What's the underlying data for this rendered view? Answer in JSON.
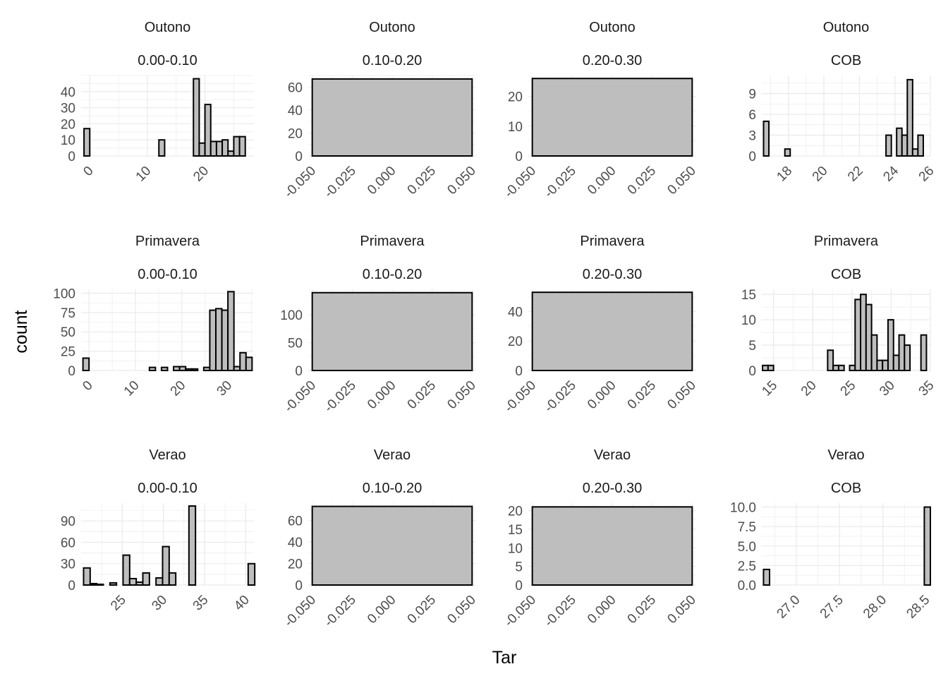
{
  "xlabel": "Tar",
  "ylabel": "count",
  "chart_data": [
    {
      "type": "histogram",
      "season": "Outono",
      "range": "0.00-0.10",
      "xlim": [
        -1.5,
        28.5
      ],
      "ylim": [
        0,
        50
      ],
      "xticks": [
        0,
        10,
        20
      ],
      "yticks": [
        0,
        10,
        20,
        30,
        40
      ],
      "bins": [
        [
          -1,
          0,
          17
        ],
        [
          12,
          13,
          10
        ],
        [
          18,
          19,
          48
        ],
        [
          19,
          20,
          8
        ],
        [
          20,
          21,
          32
        ],
        [
          21,
          22,
          9
        ],
        [
          22,
          23,
          9
        ],
        [
          23,
          24,
          10
        ],
        [
          24,
          25,
          3
        ],
        [
          25,
          26,
          12
        ],
        [
          26,
          27,
          12
        ]
      ]
    },
    {
      "type": "histogram",
      "season": "Outono",
      "range": "0.10-0.20",
      "xlim": [
        -0.0525,
        0.0525
      ],
      "ylim": [
        0,
        70
      ],
      "xticks": [
        -0.05,
        -0.025,
        0,
        0.025,
        0.05
      ],
      "xtick_labels": [
        "-0.050",
        "-0.025",
        "0.000",
        "0.025",
        "0.050"
      ],
      "yticks": [
        0,
        20,
        40,
        60
      ],
      "bins": [
        [
          -0.05,
          0.05,
          67
        ]
      ]
    },
    {
      "type": "histogram",
      "season": "Outono",
      "range": "0.20-0.30",
      "xlim": [
        -0.0525,
        0.0525
      ],
      "ylim": [
        0,
        27
      ],
      "xticks": [
        -0.05,
        -0.025,
        0,
        0.025,
        0.05
      ],
      "xtick_labels": [
        "-0.050",
        "-0.025",
        "0.000",
        "0.025",
        "0.050"
      ],
      "yticks": [
        0,
        10,
        20
      ],
      "bins": [
        [
          -0.05,
          0.05,
          26
        ]
      ]
    },
    {
      "type": "histogram",
      "season": "Outono",
      "range": "COB",
      "xlim": [
        16.5,
        26
      ],
      "ylim": [
        0,
        11.6
      ],
      "xticks": [
        18,
        20,
        22,
        24,
        26
      ],
      "yticks": [
        0,
        3,
        6,
        9
      ],
      "bins": [
        [
          16.6,
          16.9,
          5
        ],
        [
          17.8,
          18.1,
          1
        ],
        [
          23.5,
          23.8,
          3
        ],
        [
          23.8,
          24.1,
          0
        ],
        [
          24.1,
          24.4,
          4
        ],
        [
          24.4,
          24.7,
          3
        ],
        [
          24.7,
          25.0,
          11
        ],
        [
          25.0,
          25.3,
          1
        ],
        [
          25.3,
          25.6,
          3
        ]
      ]
    },
    {
      "type": "histogram",
      "season": "Primavera",
      "range": "0.00-0.10",
      "xlim": [
        -1.7,
        35.5
      ],
      "ylim": [
        0,
        105
      ],
      "xticks": [
        0,
        10,
        20,
        30
      ],
      "yticks": [
        0,
        25,
        50,
        75,
        100
      ],
      "bins": [
        [
          -1.3,
          0,
          16
        ],
        [
          13,
          14.3,
          4
        ],
        [
          15.6,
          16.9,
          4
        ],
        [
          18.2,
          19.5,
          5
        ],
        [
          19.5,
          20.8,
          5
        ],
        [
          20.8,
          22.1,
          2
        ],
        [
          22.1,
          23.4,
          2
        ],
        [
          24.7,
          26,
          4
        ],
        [
          26,
          27.3,
          78
        ],
        [
          27.3,
          28.6,
          80
        ],
        [
          28.6,
          29.9,
          78
        ],
        [
          29.9,
          31.2,
          102
        ],
        [
          31.2,
          32.5,
          5
        ],
        [
          32.5,
          33.8,
          23
        ],
        [
          33.8,
          35.1,
          17
        ]
      ]
    },
    {
      "type": "histogram",
      "season": "Primavera",
      "range": "0.10-0.20",
      "xlim": [
        -0.0525,
        0.0525
      ],
      "ylim": [
        0,
        146
      ],
      "xticks": [
        -0.05,
        -0.025,
        0,
        0.025,
        0.05
      ],
      "xtick_labels": [
        "-0.050",
        "-0.025",
        "0.000",
        "0.025",
        "0.050"
      ],
      "yticks": [
        0,
        50,
        100
      ],
      "bins": [
        [
          -0.05,
          0.05,
          140
        ]
      ]
    },
    {
      "type": "histogram",
      "season": "Primavera",
      "range": "0.20-0.30",
      "xlim": [
        -0.0525,
        0.0525
      ],
      "ylim": [
        0,
        55
      ],
      "xticks": [
        -0.05,
        -0.025,
        0,
        0.025,
        0.05
      ],
      "xtick_labels": [
        "-0.050",
        "-0.025",
        "0.000",
        "0.025",
        "0.050"
      ],
      "yticks": [
        0,
        20,
        40
      ],
      "bins": [
        [
          -0.05,
          0.05,
          53
        ]
      ]
    },
    {
      "type": "histogram",
      "season": "Primavera",
      "range": "COB",
      "xlim": [
        13.5,
        35
      ],
      "ylim": [
        0,
        16
      ],
      "xticks": [
        15,
        20,
        25,
        30,
        35
      ],
      "yticks": [
        0,
        5,
        10,
        15
      ],
      "bins": [
        [
          13.6,
          14.3,
          1
        ],
        [
          14.3,
          15,
          1
        ],
        [
          21.9,
          22.6,
          4
        ],
        [
          22.6,
          23.3,
          1
        ],
        [
          23.3,
          24,
          1
        ],
        [
          24.7,
          25.4,
          1
        ],
        [
          25.4,
          26.1,
          14
        ],
        [
          26.1,
          26.8,
          15
        ],
        [
          26.8,
          27.5,
          13
        ],
        [
          27.5,
          28.2,
          7
        ],
        [
          28.2,
          28.9,
          2
        ],
        [
          28.9,
          29.6,
          2
        ],
        [
          29.6,
          30.3,
          10
        ],
        [
          30.3,
          31,
          3
        ],
        [
          31,
          31.7,
          7
        ],
        [
          31.7,
          32.4,
          5
        ],
        [
          33.8,
          34.5,
          7
        ]
      ]
    },
    {
      "type": "histogram",
      "season": "Verao",
      "range": "0.00-0.10",
      "xlim": [
        20,
        41
      ],
      "ylim": [
        0,
        115
      ],
      "xticks": [
        25,
        30,
        35,
        40
      ],
      "yticks": [
        0,
        30,
        60,
        90
      ],
      "bins": [
        [
          20.3,
          21.1,
          24
        ],
        [
          21.1,
          21.9,
          2
        ],
        [
          21.9,
          22.7,
          1
        ],
        [
          23.5,
          24.3,
          3
        ],
        [
          25.1,
          25.9,
          42
        ],
        [
          25.9,
          26.7,
          9
        ],
        [
          26.7,
          27.5,
          4
        ],
        [
          27.5,
          28.3,
          17
        ],
        [
          29.1,
          29.9,
          10
        ],
        [
          29.9,
          30.7,
          54
        ],
        [
          30.7,
          31.5,
          17
        ],
        [
          33.1,
          33.9,
          111
        ],
        [
          40.3,
          41.1,
          30
        ]
      ]
    },
    {
      "type": "histogram",
      "season": "Verao",
      "range": "0.10-0.20",
      "xlim": [
        -0.0525,
        0.0525
      ],
      "ylim": [
        0,
        76
      ],
      "xticks": [
        -0.05,
        -0.025,
        0,
        0.025,
        0.05
      ],
      "xtick_labels": [
        "-0.050",
        "-0.025",
        "0.000",
        "0.025",
        "0.050"
      ],
      "yticks": [
        0,
        20,
        40,
        60
      ],
      "bins": [
        [
          -0.05,
          0.05,
          73
        ]
      ]
    },
    {
      "type": "histogram",
      "season": "Verao",
      "range": "0.20-0.30",
      "xlim": [
        -0.0525,
        0.0525
      ],
      "ylim": [
        0,
        22
      ],
      "xticks": [
        -0.05,
        -0.025,
        0,
        0.025,
        0.05
      ],
      "xtick_labels": [
        "-0.050",
        "-0.025",
        "0.000",
        "0.025",
        "0.050"
      ],
      "yticks": [
        0,
        5,
        10,
        15,
        20
      ],
      "bins": [
        [
          -0.05,
          0.05,
          21
        ]
      ]
    },
    {
      "type": "histogram",
      "season": "Verao",
      "range": "COB",
      "xlim": [
        26.6,
        28.55
      ],
      "ylim": [
        0,
        10.5
      ],
      "xticks": [
        27.0,
        27.5,
        28.0,
        28.5
      ],
      "xtick_labels": [
        "27.0",
        "27.5",
        "28.0",
        "28.5"
      ],
      "yticks": [
        0,
        2.5,
        5,
        7.5,
        10
      ],
      "ytick_labels": [
        "0.0",
        "2.5",
        "5.0",
        "7.5",
        "10.0"
      ],
      "bins": [
        [
          26.62,
          26.69,
          2
        ],
        [
          28.48,
          28.55,
          10
        ]
      ]
    }
  ]
}
